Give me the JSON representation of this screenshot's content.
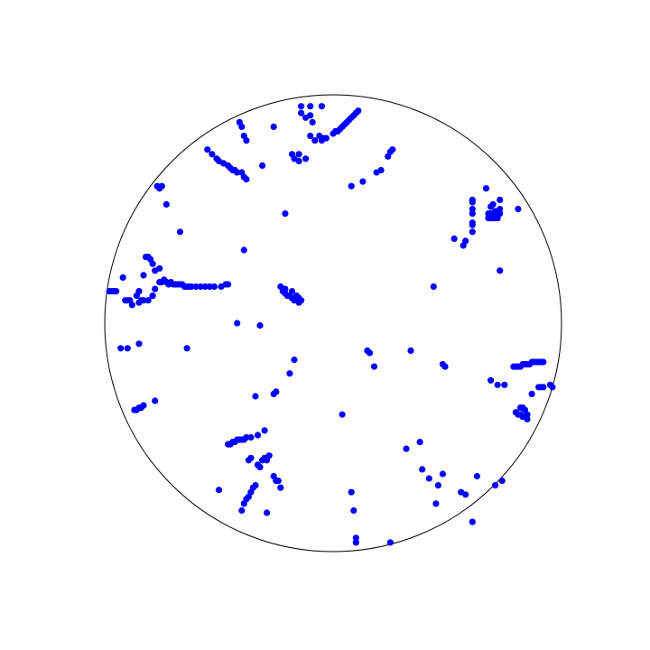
{
  "chart_data": {
    "type": "scatter",
    "title": "",
    "xlabel": "",
    "ylabel": "",
    "grid": false,
    "legend": "none",
    "boundary": "unit circle",
    "xlim": [
      -1,
      1
    ],
    "ylim": [
      -1,
      1
    ],
    "marker_color": "#0000ff",
    "boundary_color": "#000000",
    "series": [
      {
        "points": [
          [
            -0.41,
            0.88
          ],
          [
            -0.4,
            0.86
          ],
          [
            -0.39,
            0.82
          ],
          [
            -0.38,
            0.8
          ],
          [
            -0.26,
            0.86
          ],
          [
            -0.14,
            0.95
          ],
          [
            -0.14,
            0.92
          ],
          [
            -0.12,
            0.9
          ],
          [
            -0.1,
            0.95
          ],
          [
            -0.1,
            0.91
          ],
          [
            -0.09,
            0.88
          ],
          [
            -0.1,
            0.82
          ],
          [
            -0.08,
            0.8
          ],
          [
            -0.05,
            0.95
          ],
          [
            -0.06,
            0.82
          ],
          [
            -0.05,
            0.8
          ],
          [
            -0.04,
            0.81
          ],
          [
            -0.03,
            0.81
          ],
          [
            0.0,
            0.83
          ],
          [
            0.01,
            0.84
          ],
          [
            0.02,
            0.84
          ],
          [
            0.03,
            0.85
          ],
          [
            0.04,
            0.86
          ],
          [
            0.05,
            0.87
          ],
          [
            0.06,
            0.88
          ],
          [
            0.07,
            0.89
          ],
          [
            0.08,
            0.9
          ],
          [
            0.09,
            0.91
          ],
          [
            0.1,
            0.92
          ],
          [
            0.11,
            0.93
          ],
          [
            -0.18,
            0.74
          ],
          [
            -0.17,
            0.72
          ],
          [
            -0.15,
            0.71
          ],
          [
            -0.15,
            0.74
          ],
          [
            -0.12,
            0.72
          ],
          [
            -0.55,
            0.76
          ],
          [
            -0.53,
            0.74
          ],
          [
            -0.51,
            0.72
          ],
          [
            -0.5,
            0.71
          ],
          [
            -0.48,
            0.7
          ],
          [
            -0.46,
            0.69
          ],
          [
            -0.45,
            0.68
          ],
          [
            -0.44,
            0.67
          ],
          [
            -0.43,
            0.67
          ],
          [
            -0.42,
            0.66
          ],
          [
            -0.4,
            0.66
          ],
          [
            -0.39,
            0.64
          ],
          [
            -0.38,
            0.63
          ],
          [
            -0.31,
            0.69
          ],
          [
            -0.77,
            0.6
          ],
          [
            -0.76,
            0.59
          ],
          [
            -0.75,
            0.6
          ],
          [
            -0.73,
            0.52
          ],
          [
            -0.67,
            0.4
          ],
          [
            -0.39,
            0.32
          ],
          [
            -0.21,
            0.48
          ],
          [
            0.08,
            0.6
          ],
          [
            0.13,
            0.62
          ],
          [
            0.19,
            0.66
          ],
          [
            0.21,
            0.67
          ],
          [
            0.24,
            0.73
          ],
          [
            0.25,
            0.75
          ],
          [
            0.26,
            0.76
          ],
          [
            0.61,
            0.54
          ],
          [
            0.61,
            0.53
          ],
          [
            0.61,
            0.5
          ],
          [
            0.61,
            0.48
          ],
          [
            0.61,
            0.44
          ],
          [
            0.61,
            0.43
          ],
          [
            0.61,
            0.4
          ],
          [
            0.58,
            0.36
          ],
          [
            0.57,
            0.34
          ],
          [
            0.53,
            0.37
          ],
          [
            0.67,
            0.59
          ],
          [
            0.68,
            0.48
          ],
          [
            0.69,
            0.48
          ],
          [
            0.7,
            0.47
          ],
          [
            0.71,
            0.47
          ],
          [
            0.71,
            0.49
          ],
          [
            0.72,
            0.48
          ],
          [
            0.73,
            0.48
          ],
          [
            0.73,
            0.5
          ],
          [
            0.72,
            0.46
          ],
          [
            0.71,
            0.46
          ],
          [
            0.7,
            0.46
          ],
          [
            0.69,
            0.46
          ],
          [
            0.68,
            0.46
          ],
          [
            0.69,
            0.51
          ],
          [
            0.7,
            0.52
          ],
          [
            0.73,
            0.54
          ],
          [
            0.81,
            0.5
          ],
          [
            0.73,
            0.23
          ],
          [
            -0.82,
            0.29
          ],
          [
            -0.81,
            0.29
          ],
          [
            -0.8,
            0.28
          ],
          [
            -0.79,
            0.26
          ],
          [
            -0.83,
            0.21
          ],
          [
            -0.78,
            0.23
          ],
          [
            -0.76,
            0.24
          ],
          [
            -0.85,
            0.14
          ],
          [
            -0.92,
            0.2
          ],
          [
            -0.76,
            0.18
          ],
          [
            -0.75,
            0.18
          ],
          [
            -0.74,
            0.19
          ],
          [
            -0.73,
            0.18
          ],
          [
            -0.72,
            0.17
          ],
          [
            -0.71,
            0.18
          ],
          [
            -0.7,
            0.17
          ],
          [
            -0.69,
            0.17
          ],
          [
            -0.68,
            0.17
          ],
          [
            -0.67,
            0.17
          ],
          [
            -0.66,
            0.17
          ],
          [
            -0.65,
            0.16
          ],
          [
            -0.64,
            0.16
          ],
          [
            -0.63,
            0.16
          ],
          [
            -0.62,
            0.16
          ],
          [
            -0.6,
            0.16
          ],
          [
            -0.58,
            0.16
          ],
          [
            -0.56,
            0.16
          ],
          [
            -0.54,
            0.16
          ],
          [
            -0.52,
            0.16
          ],
          [
            -0.49,
            0.16
          ],
          [
            -0.47,
            0.17
          ],
          [
            -0.46,
            0.17
          ],
          [
            -0.78,
            0.15
          ],
          [
            -0.79,
            0.12
          ],
          [
            -0.81,
            0.1
          ],
          [
            -0.84,
            0.1
          ],
          [
            -0.85,
            0.14
          ],
          [
            -0.86,
            0.12
          ],
          [
            -0.89,
            0.1
          ],
          [
            -0.9,
            0.1
          ],
          [
            -0.91,
            0.1
          ],
          [
            -0.95,
            0.14
          ],
          [
            -0.96,
            0.14
          ],
          [
            -0.97,
            0.14
          ],
          [
            -0.98,
            0.14
          ],
          [
            -0.88,
            0.08
          ],
          [
            -0.85,
            0.09
          ],
          [
            -0.83,
            0.1
          ],
          [
            -0.79,
            0.12
          ],
          [
            -0.23,
            0.16
          ],
          [
            -0.22,
            0.14
          ],
          [
            -0.21,
            0.13
          ],
          [
            -0.2,
            0.12
          ],
          [
            -0.19,
            0.12
          ],
          [
            -0.18,
            0.11
          ],
          [
            -0.17,
            0.1
          ],
          [
            -0.16,
            0.1
          ],
          [
            -0.15,
            0.11
          ],
          [
            -0.15,
            0.09
          ],
          [
            -0.14,
            0.1
          ],
          [
            -0.16,
            0.12
          ],
          [
            -0.18,
            0.14
          ],
          [
            -0.21,
            0.15
          ],
          [
            0.44,
            0.16
          ],
          [
            -0.32,
            -0.01
          ],
          [
            -0.42,
            0.0
          ],
          [
            -0.93,
            -0.11
          ],
          [
            -0.9,
            -0.11
          ],
          [
            -0.85,
            -0.09
          ],
          [
            -0.64,
            -0.11
          ],
          [
            0.15,
            -0.12
          ],
          [
            0.16,
            -0.13
          ],
          [
            0.18,
            -0.19
          ],
          [
            0.34,
            -0.12
          ],
          [
            0.48,
            -0.18
          ],
          [
            0.49,
            -0.19
          ],
          [
            -0.17,
            -0.16
          ],
          [
            -0.19,
            -0.22
          ],
          [
            -0.25,
            -0.3
          ],
          [
            -0.26,
            -0.31
          ],
          [
            -0.34,
            -0.32
          ],
          [
            -0.87,
            -0.38
          ],
          [
            -0.86,
            -0.38
          ],
          [
            -0.85,
            -0.37
          ],
          [
            -0.84,
            -0.37
          ],
          [
            -0.83,
            -0.36
          ],
          [
            -0.78,
            -0.34
          ],
          [
            0.04,
            -0.4
          ],
          [
            0.79,
            -0.19
          ],
          [
            0.8,
            -0.19
          ],
          [
            0.81,
            -0.19
          ],
          [
            0.82,
            -0.19
          ],
          [
            0.83,
            -0.18
          ],
          [
            0.84,
            -0.18
          ],
          [
            0.85,
            -0.18
          ],
          [
            0.86,
            -0.18
          ],
          [
            0.87,
            -0.17
          ],
          [
            0.88,
            -0.17
          ],
          [
            0.89,
            -0.17
          ],
          [
            0.9,
            -0.17
          ],
          [
            0.91,
            -0.17
          ],
          [
            0.92,
            -0.17
          ],
          [
            0.69,
            -0.25
          ],
          [
            0.72,
            -0.27
          ],
          [
            0.75,
            -0.27
          ],
          [
            0.9,
            -0.28
          ],
          [
            0.91,
            -0.28
          ],
          [
            0.92,
            -0.28
          ],
          [
            0.95,
            -0.27
          ],
          [
            0.96,
            -0.28
          ],
          [
            0.87,
            -0.31
          ],
          [
            0.82,
            -0.37
          ],
          [
            0.83,
            -0.37
          ],
          [
            0.84,
            -0.38
          ],
          [
            0.85,
            -0.4
          ],
          [
            0.83,
            -0.41
          ],
          [
            0.82,
            -0.4
          ],
          [
            0.81,
            -0.4
          ],
          [
            0.8,
            -0.39
          ],
          [
            0.85,
            -0.42
          ],
          [
            -0.46,
            -0.53
          ],
          [
            -0.45,
            -0.53
          ],
          [
            -0.44,
            -0.52
          ],
          [
            -0.43,
            -0.52
          ],
          [
            -0.42,
            -0.51
          ],
          [
            -0.41,
            -0.51
          ],
          [
            -0.4,
            -0.51
          ],
          [
            -0.39,
            -0.51
          ],
          [
            -0.38,
            -0.5
          ],
          [
            -0.36,
            -0.5
          ],
          [
            -0.33,
            -0.49
          ],
          [
            -0.3,
            -0.47
          ],
          [
            -0.37,
            -0.6
          ],
          [
            -0.36,
            -0.59
          ],
          [
            -0.33,
            -0.62
          ],
          [
            -0.32,
            -0.63
          ],
          [
            -0.31,
            -0.6
          ],
          [
            -0.3,
            -0.59
          ],
          [
            -0.29,
            -0.6
          ],
          [
            -0.28,
            -0.58
          ],
          [
            -0.26,
            -0.67
          ],
          [
            -0.25,
            -0.69
          ],
          [
            -0.24,
            -0.69
          ],
          [
            -0.23,
            -0.72
          ],
          [
            -0.34,
            -0.71
          ],
          [
            -0.35,
            -0.72
          ],
          [
            -0.36,
            -0.74
          ],
          [
            -0.37,
            -0.76
          ],
          [
            -0.38,
            -0.77
          ],
          [
            -0.39,
            -0.79
          ],
          [
            -0.4,
            -0.82
          ],
          [
            -0.5,
            -0.73
          ],
          [
            -0.29,
            -0.83
          ],
          [
            0.32,
            -0.55
          ],
          [
            0.38,
            -0.52
          ],
          [
            0.39,
            -0.64
          ],
          [
            0.42,
            -0.68
          ],
          [
            0.46,
            -0.71
          ],
          [
            0.48,
            -0.66
          ],
          [
            0.45,
            -0.79
          ],
          [
            0.56,
            -0.74
          ],
          [
            0.58,
            -0.75
          ],
          [
            0.63,
            -0.67
          ],
          [
            0.61,
            -0.87
          ],
          [
            0.71,
            -0.71
          ],
          [
            0.74,
            -0.69
          ],
          [
            0.08,
            -0.74
          ],
          [
            0.09,
            -0.82
          ],
          [
            0.1,
            -0.94
          ],
          [
            0.1,
            -0.96
          ],
          [
            0.25,
            -0.96
          ]
        ]
      }
    ]
  }
}
